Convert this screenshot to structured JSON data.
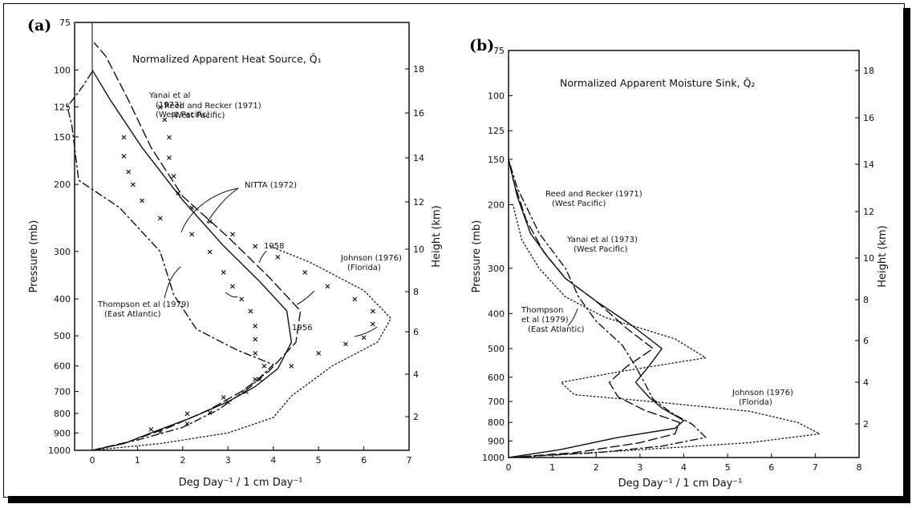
{
  "panels": {
    "a": {
      "letter": "(a)",
      "title": "Normalized Apparent Heat Source, Q̂₁",
      "xlabel": "Deg Day⁻¹ / 1 cm Day⁻¹",
      "ylabel": "Pressure (mb)",
      "ylabel_right": "Height (km)"
    },
    "b": {
      "letter": "(b)",
      "title": "Normalized Apparent Moisture Sink, Q̂₂",
      "xlabel": "Deg Day⁻¹ / 1 cm Day⁻¹",
      "ylabel": "Pressure (mb)",
      "ylabel_right": "Height (km)"
    }
  },
  "chart_data": [
    {
      "type": "line",
      "title": "Normalized Apparent Heat Source, Q̂₁",
      "xlabel": "Deg Day⁻¹ / 1 cm Day⁻¹",
      "ylabel": "Pressure (mb)",
      "ylabel_right": "Height (km)",
      "xlim": [
        -0.5,
        7
      ],
      "ylim": [
        1000,
        75
      ],
      "yscale": "log",
      "xticks": [
        "0",
        "1",
        "2",
        "3",
        "4",
        "5",
        "6",
        "7"
      ],
      "yticks": [
        "75",
        "100",
        "125",
        "150",
        "200",
        "300",
        "400",
        "500",
        "600",
        "700",
        "800",
        "900",
        "1000"
      ],
      "yticks_right": [
        "2",
        "4",
        "6",
        "8",
        "10",
        "12",
        "14",
        "16",
        "18"
      ],
      "grid": false,
      "series": [
        {
          "style": "solid",
          "label_lines": [
            "Yanai et al",
            "(1973)",
            "(West Pacific)"
          ],
          "points": [
            [
              0,
              1000
            ],
            [
              0.7,
              960
            ],
            [
              1.4,
              890
            ],
            [
              2.2,
              820
            ],
            [
              3.0,
              745
            ],
            [
              3.6,
              680
            ],
            [
              4.1,
              610
            ],
            [
              4.4,
              520
            ],
            [
              4.3,
              430
            ],
            [
              3.7,
              360
            ],
            [
              2.9,
              290
            ],
            [
              2.0,
              220
            ],
            [
              1.1,
              160
            ],
            [
              0.4,
              120
            ],
            [
              0,
              100
            ]
          ]
        },
        {
          "style": "long-dash",
          "label_lines": [
            "Reed and Recker (1971)",
            "(West Pacific)"
          ],
          "points": [
            [
              0,
              1000
            ],
            [
              0.8,
              950
            ],
            [
              1.7,
              870
            ],
            [
              2.6,
              780
            ],
            [
              3.3,
              700
            ],
            [
              3.9,
              620
            ],
            [
              4.5,
              520
            ],
            [
              4.6,
              430
            ],
            [
              3.9,
              350
            ],
            [
              3.0,
              275
            ],
            [
              2.0,
              215
            ],
            [
              1.3,
              160
            ],
            [
              0.8,
              120
            ],
            [
              0.3,
              92
            ],
            [
              0.05,
              85
            ]
          ]
        },
        {
          "style": "dash-dot",
          "label_lines": [
            "Thompson et al (1979)",
            "(East Atlantic)"
          ],
          "points": [
            [
              0,
              1000
            ],
            [
              1.0,
              940
            ],
            [
              2.0,
              870
            ],
            [
              2.8,
              780
            ],
            [
              3.5,
              680
            ],
            [
              4.0,
              595
            ],
            [
              3.2,
              545
            ],
            [
              2.3,
              480
            ],
            [
              1.8,
              390
            ],
            [
              1.5,
              300
            ],
            [
              0.6,
              230
            ],
            [
              -0.3,
              195
            ],
            [
              -0.45,
              140
            ],
            [
              -0.55,
              125
            ],
            [
              -0.2,
              110
            ],
            [
              0,
              101
            ]
          ]
        },
        {
          "style": "dotted",
          "label_lines": [
            "Johnson (1976)",
            "(Florida)"
          ],
          "points": [
            [
              0,
              1000
            ],
            [
              1.5,
              960
            ],
            [
              3.0,
              900
            ],
            [
              4.0,
              820
            ],
            [
              4.4,
              720
            ],
            [
              5.3,
              600
            ],
            [
              6.3,
              520
            ],
            [
              6.6,
              450
            ],
            [
              6.0,
              380
            ],
            [
              4.8,
              320
            ],
            [
              3.9,
              290
            ]
          ]
        },
        {
          "style": "marker",
          "marker": "x",
          "label_lines": [
            "1956"
          ],
          "points": [
            [
              1.3,
              880
            ],
            [
              2.1,
              800
            ],
            [
              2.9,
              725
            ],
            [
              3.7,
              650
            ],
            [
              4.4,
              600
            ],
            [
              5.0,
              555
            ],
            [
              5.6,
              525
            ],
            [
              6.0,
              505
            ],
            [
              6.2,
              465
            ],
            [
              6.2,
              430
            ],
            [
              5.8,
              400
            ],
            [
              5.2,
              370
            ],
            [
              4.7,
              340
            ],
            [
              4.1,
              310
            ],
            [
              3.6,
              290
            ],
            [
              3.1,
              270
            ],
            [
              2.6,
              250
            ],
            [
              2.2,
              230
            ],
            [
              1.9,
              210
            ],
            [
              1.8,
              190
            ],
            [
              1.7,
              170
            ],
            [
              1.7,
              150
            ],
            [
              1.6,
              135
            ],
            [
              1.5,
              125
            ]
          ]
        },
        {
          "style": "marker",
          "marker": "x",
          "label_lines": [
            "1958"
          ],
          "points": [
            [
              1.5,
              895
            ],
            [
              2.1,
              850
            ],
            [
              2.6,
              795
            ],
            [
              3.0,
              745
            ],
            [
              3.4,
              700
            ],
            [
              3.6,
              650
            ],
            [
              3.8,
              600
            ],
            [
              3.6,
              555
            ],
            [
              3.6,
              510
            ],
            [
              3.6,
              470
            ],
            [
              3.5,
              430
            ],
            [
              3.3,
              400
            ],
            [
              3.1,
              370
            ],
            [
              2.9,
              340
            ],
            [
              2.6,
              300
            ],
            [
              2.2,
              270
            ],
            [
              1.5,
              245
            ],
            [
              1.1,
              220
            ],
            [
              0.9,
              200
            ],
            [
              0.8,
              185
            ],
            [
              0.7,
              168
            ],
            [
              0.7,
              150
            ]
          ]
        }
      ],
      "annotations": [
        "NITTA (1972)",
        "1956",
        "1958"
      ]
    },
    {
      "type": "line",
      "title": "Normalized Apparent Moisture Sink, Q̂₂",
      "xlabel": "Deg Day⁻¹ / 1 cm Day⁻¹",
      "ylabel": "Pressure (mb)",
      "ylabel_right": "Height (km)",
      "xlim": [
        0,
        8
      ],
      "ylim": [
        1000,
        75
      ],
      "yscale": "log",
      "xticks": [
        "0",
        "1",
        "2",
        "3",
        "4",
        "5",
        "6",
        "7",
        "8"
      ],
      "yticks": [
        "75",
        "100",
        "125",
        "150",
        "200",
        "300",
        "400",
        "500",
        "600",
        "700",
        "800",
        "900",
        "1000"
      ],
      "yticks_right": [
        "2",
        "4",
        "6",
        "8",
        "10",
        "12",
        "14",
        "16",
        "18"
      ],
      "grid": false,
      "series": [
        {
          "style": "solid",
          "label_lines": [
            "Yanai et al (1973)",
            "(West Pacific)"
          ],
          "points": [
            [
              0,
              1000
            ],
            [
              1.2,
              950
            ],
            [
              2.5,
              880
            ],
            [
              3.8,
              830
            ],
            [
              4.0,
              790
            ],
            [
              3.5,
              730
            ],
            [
              3.2,
              680
            ],
            [
              2.9,
              620
            ],
            [
              3.2,
              560
            ],
            [
              3.5,
              500
            ],
            [
              2.8,
              430
            ],
            [
              2.0,
              370
            ],
            [
              1.3,
              320
            ],
            [
              0.9,
              280
            ],
            [
              0.5,
              240
            ],
            [
              0.2,
              190
            ],
            [
              0,
              150
            ]
          ]
        },
        {
          "style": "long-dash",
          "label_lines": [
            "Reed and Recker (1971)",
            "(West Pacific)"
          ],
          "points": [
            [
              0,
              1000
            ],
            [
              1.5,
              970
            ],
            [
              3.0,
              910
            ],
            [
              3.8,
              860
            ],
            [
              3.9,
              800
            ],
            [
              3.1,
              740
            ],
            [
              2.5,
              680
            ],
            [
              2.3,
              620
            ],
            [
              2.7,
              560
            ],
            [
              3.3,
              500
            ],
            [
              2.7,
              440
            ],
            [
              2.0,
              370
            ],
            [
              1.3,
              320
            ],
            [
              0.8,
              270
            ],
            [
              0.4,
              220
            ],
            [
              0.1,
              170
            ],
            [
              0,
              150
            ]
          ]
        },
        {
          "style": "dash-dot",
          "label_lines": [
            "Thompson",
            "et al (1979)",
            "(East Atlantic)"
          ],
          "points": [
            [
              0,
              1000
            ],
            [
              2.0,
              970
            ],
            [
              3.5,
              930
            ],
            [
              4.5,
              880
            ],
            [
              4.2,
              810
            ],
            [
              3.7,
              750
            ],
            [
              3.3,
              690
            ],
            [
              3.1,
              620
            ],
            [
              2.9,
              560
            ],
            [
              2.6,
              490
            ],
            [
              2.0,
              420
            ],
            [
              1.6,
              360
            ],
            [
              1.3,
              300
            ],
            [
              0.7,
              240
            ],
            [
              0.2,
              180
            ],
            [
              0,
              150
            ]
          ]
        },
        {
          "style": "dotted",
          "label_lines": [
            "Johnson (1976)",
            "(Florida)"
          ],
          "points": [
            [
              0,
              1000
            ],
            [
              2.5,
              960
            ],
            [
              5.5,
              910
            ],
            [
              7.1,
              860
            ],
            [
              6.6,
              800
            ],
            [
              5.5,
              745
            ],
            [
              3.5,
              705
            ],
            [
              1.5,
              670
            ],
            [
              1.2,
              620
            ],
            [
              2.5,
              580
            ],
            [
              4.5,
              530
            ],
            [
              3.8,
              470
            ],
            [
              2.2,
              410
            ],
            [
              1.3,
              360
            ],
            [
              0.7,
              300
            ],
            [
              0.3,
              250
            ],
            [
              0.1,
              200
            ]
          ]
        }
      ]
    }
  ]
}
